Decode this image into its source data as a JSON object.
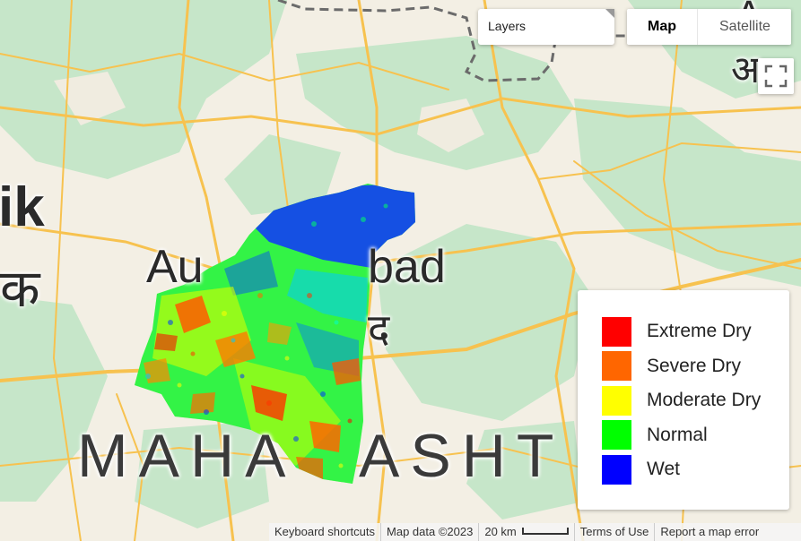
{
  "map": {
    "place_labels": {
      "nashik_en": "ik",
      "nashik_hi": "क",
      "aurangabad_left": "Au",
      "aurangabad_right": "bad",
      "aurangabad_hi": "द",
      "state_left": "MAHA",
      "state_right": "ASHT",
      "topright_en": "A",
      "topright_hi": "अ"
    },
    "drought_classes": [
      "extreme-dry",
      "severe-dry",
      "moderate-dry",
      "normal",
      "wet"
    ],
    "colors": {
      "water_land": "#f3efe4",
      "green_area": "#c6e6c9",
      "road": "#f7c24f",
      "boundary": "#6b6b6b"
    }
  },
  "controls": {
    "layers_label": "Layers",
    "map_type": {
      "map_label": "Map",
      "satellite_label": "Satellite",
      "selected": "Map"
    },
    "fullscreen_icon": "fullscreen-icon"
  },
  "legend": {
    "items": [
      {
        "label": "Extreme Dry",
        "color": "#ff0000"
      },
      {
        "label": "Severe Dry",
        "color": "#ff6600"
      },
      {
        "label": "Moderate Dry",
        "color": "#ffff00"
      },
      {
        "label": "Normal",
        "color": "#00ff00"
      },
      {
        "label": "Wet",
        "color": "#0000ff"
      }
    ]
  },
  "footer": {
    "keyboard_shortcuts": "Keyboard shortcuts",
    "map_data": "Map data ©2023",
    "scale_label": "20 km",
    "terms": "Terms of Use",
    "report": "Report a map error"
  }
}
